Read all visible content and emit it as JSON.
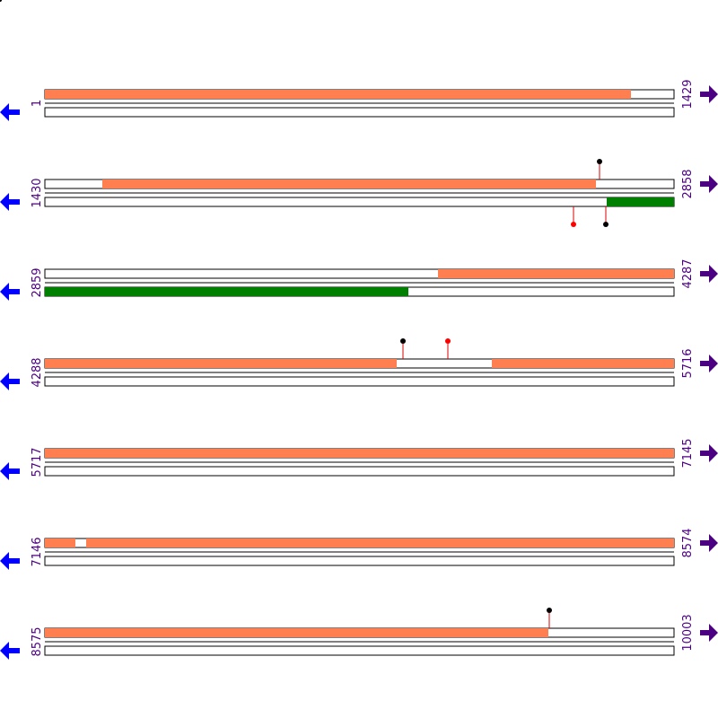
{
  "rows": [
    {
      "start": 1,
      "end": 1429
    },
    {
      "start": 1430,
      "end": 2858
    },
    {
      "start": 2859,
      "end": 4287
    },
    {
      "start": 4288,
      "end": 5716
    },
    {
      "start": 5717,
      "end": 7145
    },
    {
      "start": 7146,
      "end": 8574
    },
    {
      "start": 8575,
      "end": 10003
    }
  ]
}
